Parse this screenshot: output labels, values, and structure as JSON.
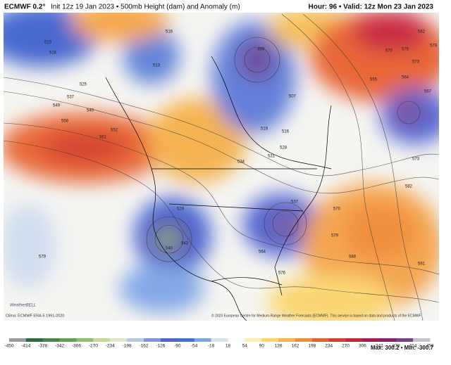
{
  "header": {
    "model": "ECMWF 0.2°",
    "init": "Init 12z 19 Jan 2023 • 500mb Height (dam) and Anomaly (m)",
    "valid": "Hour: 96 • Valid: 12z Mon 23 Jan 2023"
  },
  "contour_labels": [
    513,
    516,
    516,
    513,
    525,
    537,
    549,
    540,
    558,
    561,
    552,
    489,
    507,
    519,
    516,
    528,
    534,
    531,
    519,
    540,
    543,
    537,
    564,
    576,
    570,
    579,
    588,
    582,
    573,
    591,
    582,
    576,
    570,
    579,
    567,
    579,
    555,
    564,
    573
  ],
  "footer": {
    "clima": "Clima: ECMWF ERA-5 1991-2020",
    "credit": "© 2023 European Centre for Medium-Range Weather Forecasts (ECMWF). This service is based on data and products of the ECMWF",
    "logo": "WeatherBELL",
    "maxmin": "Max: 300.2 • Min: -300.7"
  },
  "legend": {
    "labels": [
      -450,
      -414,
      -378,
      -342,
      -306,
      -270,
      -234,
      -198,
      -162,
      -126,
      -90,
      -54,
      -18,
      18,
      54,
      90,
      126,
      162,
      198,
      234,
      270,
      306,
      342,
      378,
      414,
      450
    ],
    "colors": [
      "#9a9a9a",
      "#2f6b3a",
      "#3f8a45",
      "#5aa552",
      "#8cc26c",
      "#c3dd97",
      "#dfe9c9",
      "#b8c6e8",
      "#7f93df",
      "#4f63d3",
      "#3f6fd8",
      "#7ea4e6",
      "#d6e2f2",
      "#fbfbfb",
      "#fdf0b0",
      "#fdd56b",
      "#fbb24a",
      "#f48a35",
      "#ea5e2d",
      "#de3a30",
      "#c92337",
      "#b2184d",
      "#8e1c6a",
      "#7a3f8a",
      "#c8c0d0"
    ]
  }
}
